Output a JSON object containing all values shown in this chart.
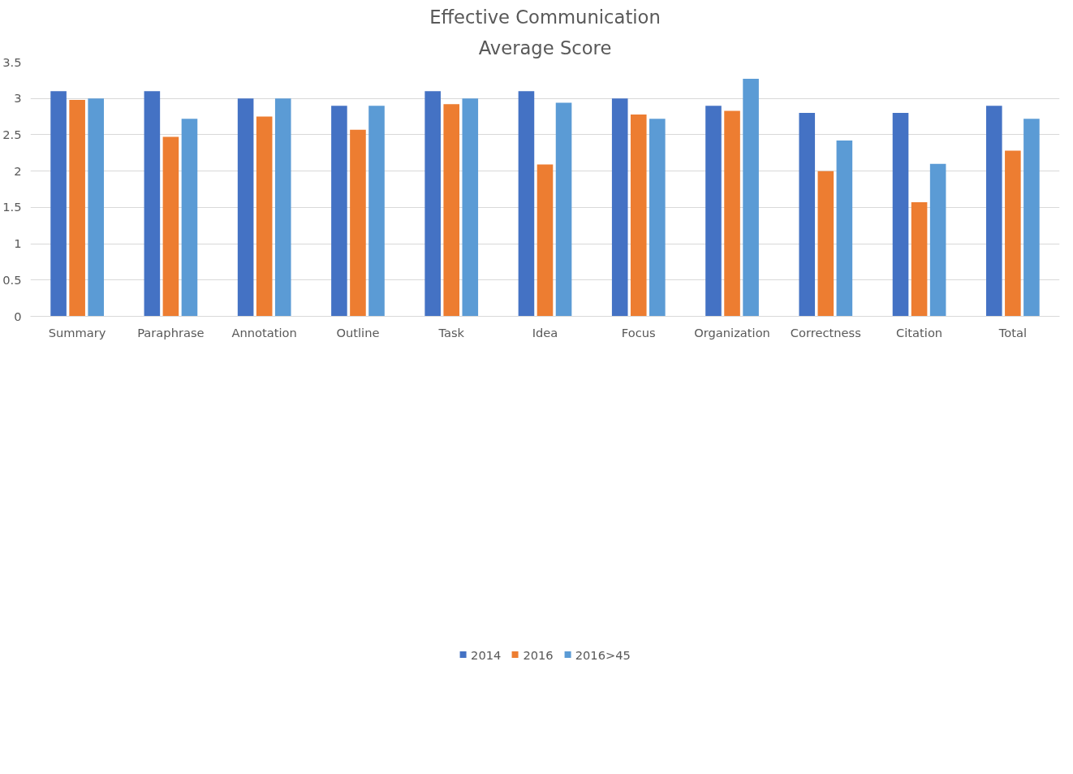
{
  "chart_data": {
    "type": "bar",
    "title": "Effective Communication",
    "subtitle": "Average Score",
    "categories": [
      "Summary",
      "Paraphrase",
      "Annotation",
      "Outline",
      "Task",
      "Idea",
      "Focus",
      "Organization",
      "Correctness",
      "Citation",
      "Total"
    ],
    "series": [
      {
        "name": "2014",
        "color": "#4472c4",
        "values": [
          3.1,
          3.1,
          3.0,
          2.9,
          3.1,
          3.1,
          3.0,
          2.9,
          2.8,
          2.8,
          2.9
        ]
      },
      {
        "name": "2016",
        "color": "#ed7d31",
        "values": [
          2.98,
          2.47,
          2.75,
          2.57,
          2.92,
          2.09,
          2.78,
          2.83,
          2.0,
          1.57,
          2.28
        ]
      },
      {
        "name": "2016>45",
        "color": "#5b9bd5",
        "values": [
          3.0,
          2.72,
          3.0,
          2.9,
          3.0,
          2.94,
          2.72,
          3.27,
          2.42,
          2.1,
          2.72
        ]
      }
    ],
    "ylim": [
      0,
      3.5
    ],
    "yticks": [
      0,
      0.5,
      1,
      1.5,
      2,
      2.5,
      3,
      3.5
    ],
    "grid": "y",
    "legend": "bottom"
  }
}
